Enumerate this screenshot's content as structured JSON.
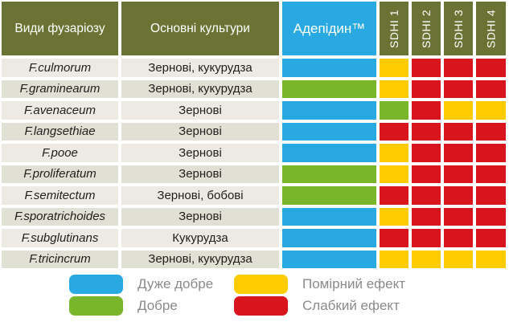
{
  "chart_data": {
    "type": "table",
    "headers": {
      "species": "Види фузаріозу",
      "cultures": "Основні культури",
      "adepidyn": "Адепідин™",
      "sdhi": [
        "SDHI 1",
        "SDHI 2",
        "SDHI 3",
        "SDHI 4"
      ]
    },
    "rating_scale": {
      "blue": "Дуже добре",
      "green": "Добре",
      "yellow": "Помірний ефект",
      "red": "Слабкий ефект"
    },
    "rows": [
      {
        "species": "F.culmorum",
        "cultures": "Зернові, кукурудза",
        "adepidyn": "blue",
        "sdhi": [
          "yellow",
          "red",
          "red",
          "red"
        ]
      },
      {
        "species": "F.graminearum",
        "cultures": "Зернові, кукурудза",
        "adepidyn": "green",
        "sdhi": [
          "yellow",
          "red",
          "red",
          "red"
        ]
      },
      {
        "species": "F.avenaceum",
        "cultures": "Зернові",
        "adepidyn": "blue",
        "sdhi": [
          "green",
          "red",
          "yellow",
          "yellow"
        ]
      },
      {
        "species": "F.langsethiae",
        "cultures": "Зернові",
        "adepidyn": "blue",
        "sdhi": [
          "red",
          "red",
          "red",
          "red"
        ]
      },
      {
        "species": "F.pooe",
        "cultures": "Зернові",
        "adepidyn": "blue",
        "sdhi": [
          "yellow",
          "red",
          "red",
          "red"
        ]
      },
      {
        "species": "F.proliferatum",
        "cultures": "Зернові",
        "adepidyn": "green",
        "sdhi": [
          "yellow",
          "red",
          "red",
          "red"
        ]
      },
      {
        "species": "F.semitectum",
        "cultures": "Зернові, бобові",
        "adepidyn": "green",
        "sdhi": [
          "red",
          "red",
          "red",
          "red"
        ]
      },
      {
        "species": "F.sporatrichoides",
        "cultures": "Зернові",
        "adepidyn": "blue",
        "sdhi": [
          "yellow",
          "red",
          "red",
          "red"
        ]
      },
      {
        "species": "F.subglutinans",
        "cultures": "Кукурудза",
        "adepidyn": "blue",
        "sdhi": [
          "red",
          "red",
          "red",
          "red"
        ]
      },
      {
        "species": "F.tricincrum",
        "cultures": "Зернові, кукурудза",
        "adepidyn": "blue",
        "sdhi": [
          "yellow",
          "yellow",
          "yellow",
          "yellow"
        ]
      }
    ]
  },
  "legend": [
    {
      "color": "blue",
      "label": "Дуже добре"
    },
    {
      "color": "green",
      "label": "Добре"
    },
    {
      "color": "yellow",
      "label": "Помірний ефект"
    },
    {
      "color": "red",
      "label": "Слабкий ефект"
    }
  ],
  "colors": {
    "blue": "#29a9e1",
    "green": "#7ab629",
    "yellow": "#fecb00",
    "red": "#d8151d",
    "olive": "#6b7334",
    "header_text": "#ffffff",
    "body_text": "#21201e",
    "legend_text": "#8a8a8a"
  }
}
